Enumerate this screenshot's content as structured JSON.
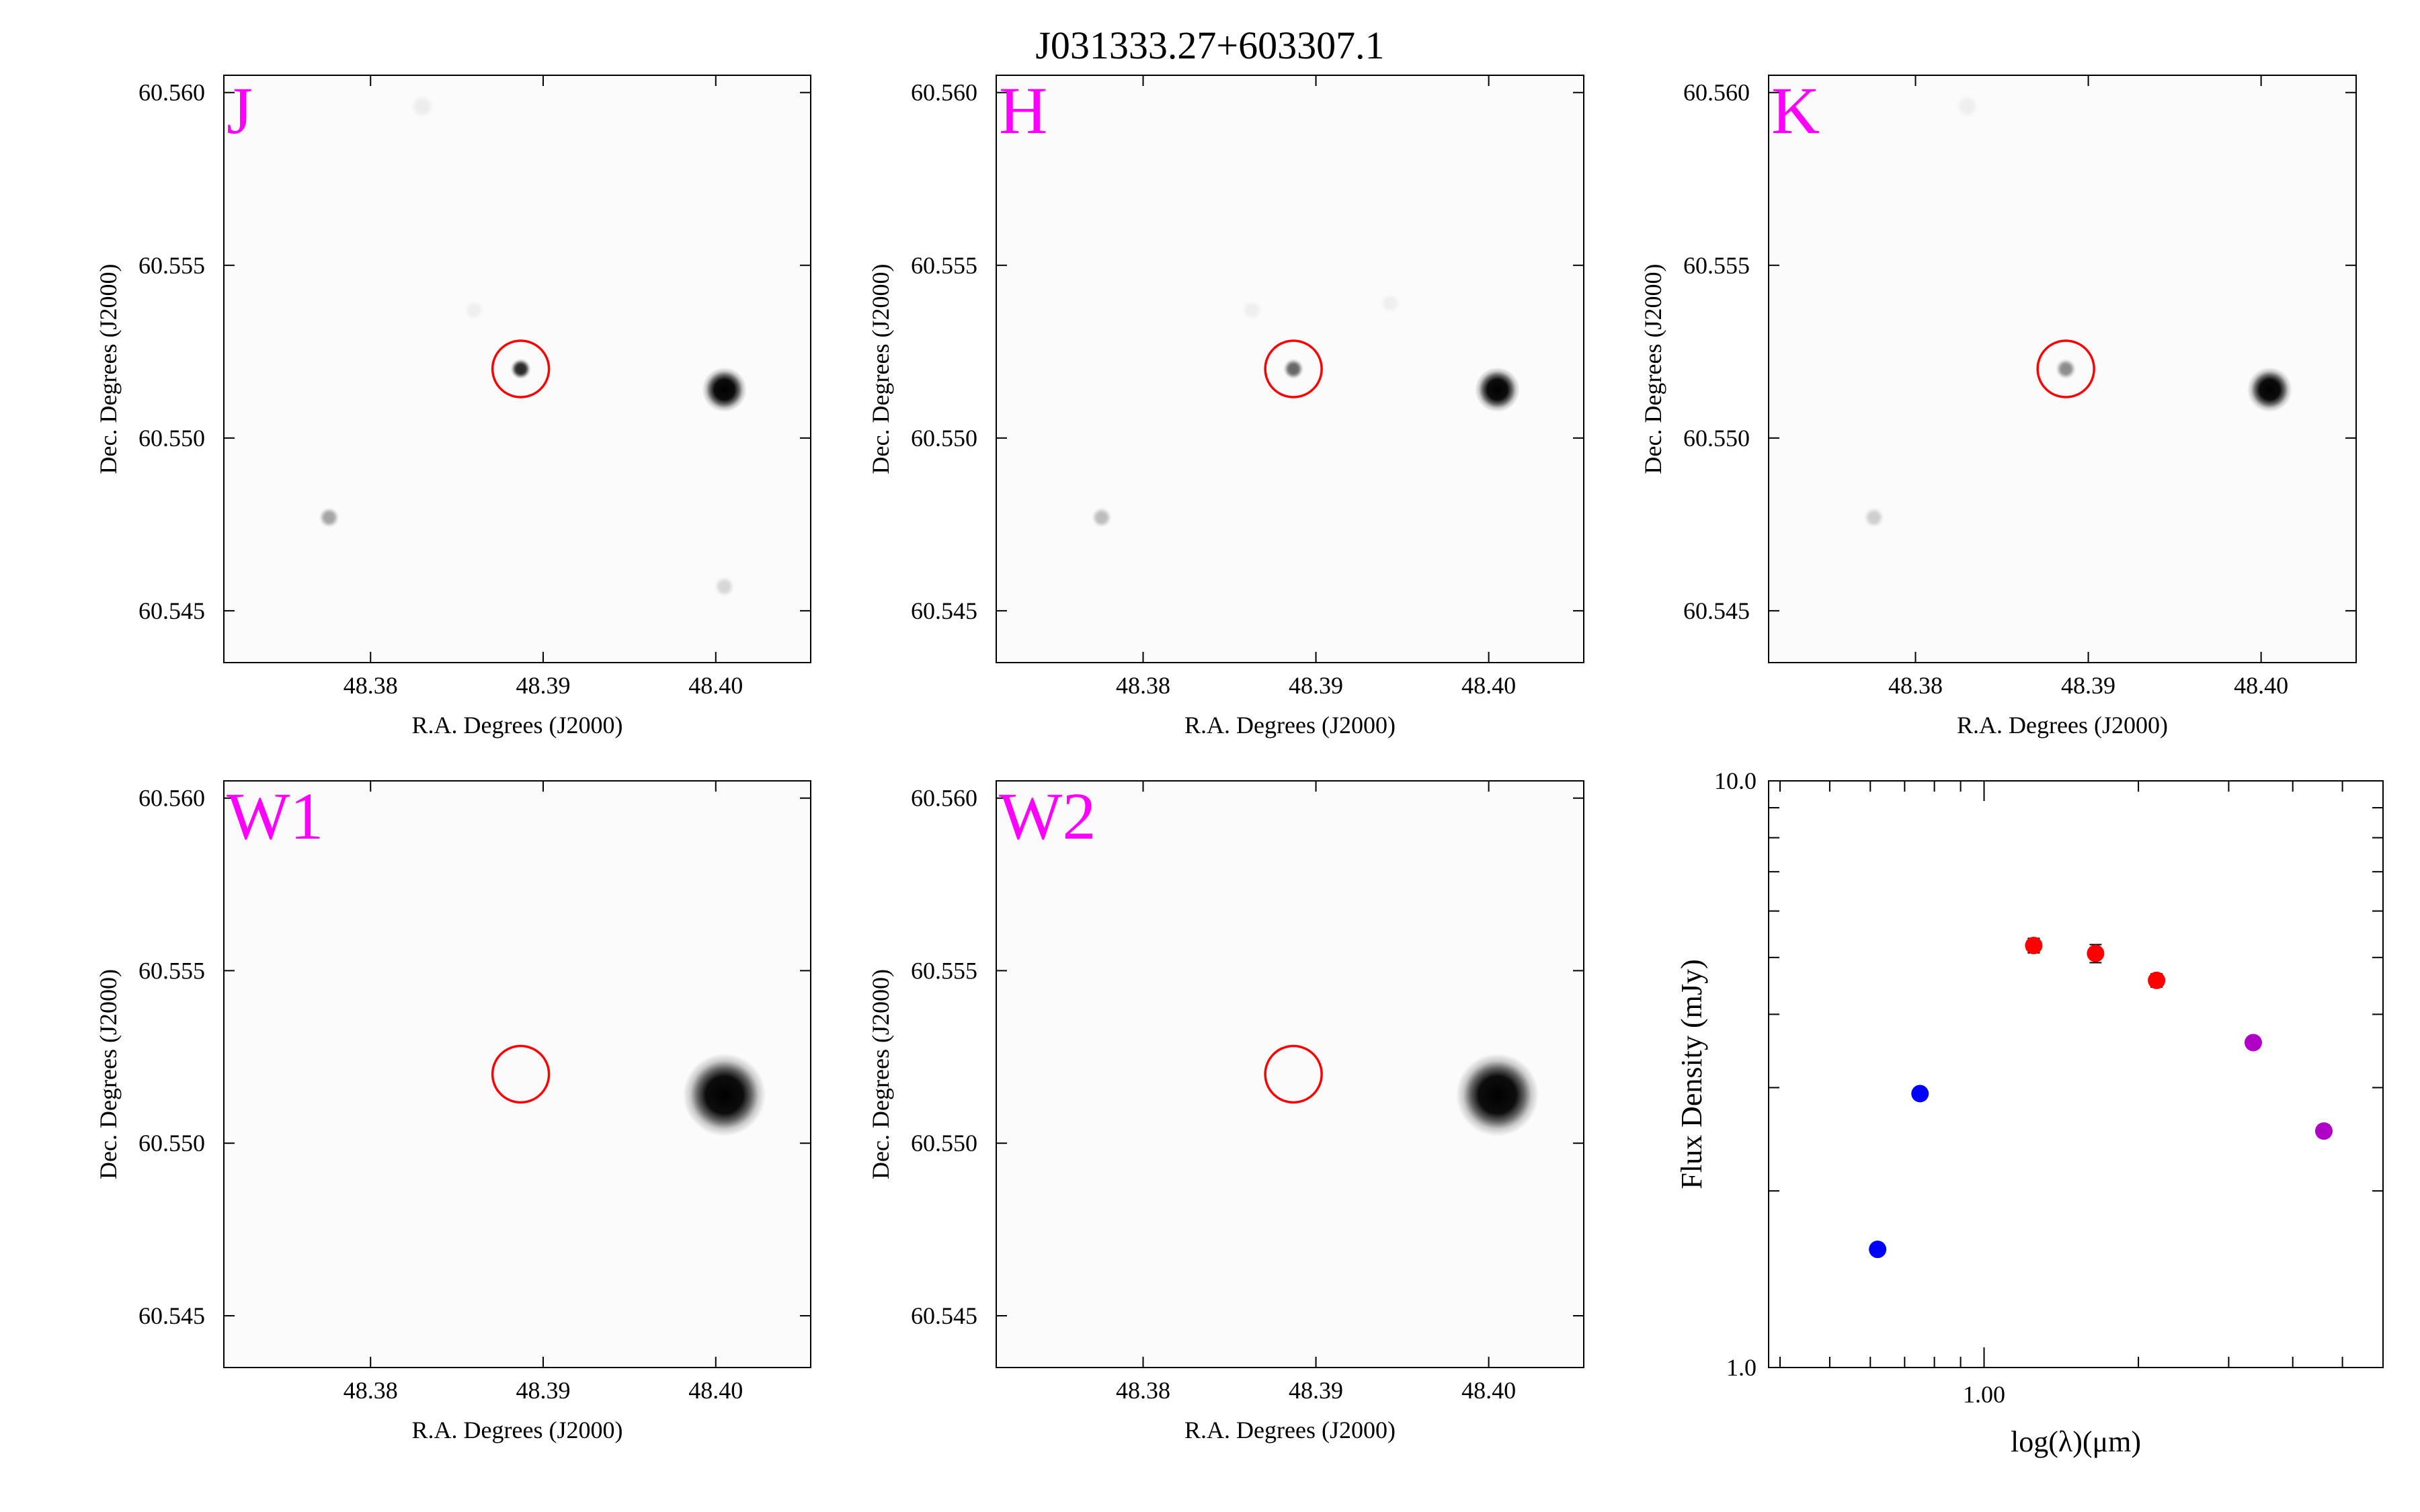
{
  "figure": {
    "title": "J031333.27+603307.1"
  },
  "chart_data": [
    {
      "type": "heatmap",
      "band": "J",
      "xlabel": "R.A. Degrees (J2000)",
      "ylabel": "Dec. Degrees (J2000)",
      "xlim": [
        48.3715,
        48.4055
      ],
      "ylim": [
        60.5435,
        60.5605
      ],
      "xticks": [
        "48.38",
        "48.39",
        "48.40"
      ],
      "yticks": [
        "60.545",
        "60.550",
        "60.555",
        "60.560"
      ],
      "target": {
        "ra": 48.3887,
        "dec": 60.552
      },
      "sources": [
        {
          "ra": 48.3887,
          "dec": 60.552,
          "intensity": 0.85,
          "size": 0.0006
        },
        {
          "ra": 48.4005,
          "dec": 60.5514,
          "intensity": 1.0,
          "size": 0.0013
        },
        {
          "ra": 48.3776,
          "dec": 60.5477,
          "intensity": 0.35,
          "size": 0.0006
        },
        {
          "ra": 48.4005,
          "dec": 60.5457,
          "intensity": 0.15,
          "size": 0.0006
        },
        {
          "ra": 48.383,
          "dec": 60.5596,
          "intensity": 0.06,
          "size": 0.0007
        },
        {
          "ra": 48.386,
          "dec": 60.5537,
          "intensity": 0.05,
          "size": 0.0006
        }
      ]
    },
    {
      "type": "heatmap",
      "band": "H",
      "xlabel": "R.A. Degrees (J2000)",
      "ylabel": "Dec. Degrees (J2000)",
      "xlim": [
        48.3715,
        48.4055
      ],
      "ylim": [
        60.5435,
        60.5605
      ],
      "xticks": [
        "48.38",
        "48.39",
        "48.40"
      ],
      "yticks": [
        "60.545",
        "60.550",
        "60.555",
        "60.560"
      ],
      "target": {
        "ra": 48.3887,
        "dec": 60.552
      },
      "sources": [
        {
          "ra": 48.3887,
          "dec": 60.552,
          "intensity": 0.6,
          "size": 0.0006
        },
        {
          "ra": 48.4005,
          "dec": 60.5514,
          "intensity": 1.0,
          "size": 0.0013
        },
        {
          "ra": 48.3776,
          "dec": 60.5477,
          "intensity": 0.25,
          "size": 0.0006
        },
        {
          "ra": 48.3943,
          "dec": 60.5539,
          "intensity": 0.05,
          "size": 0.0006
        },
        {
          "ra": 48.3863,
          "dec": 60.5537,
          "intensity": 0.05,
          "size": 0.0006
        }
      ]
    },
    {
      "type": "heatmap",
      "band": "K",
      "xlabel": "R.A. Degrees (J2000)",
      "ylabel": "Dec. Degrees (J2000)",
      "xlim": [
        48.3715,
        48.4055
      ],
      "ylim": [
        60.5435,
        60.5605
      ],
      "xticks": [
        "48.38",
        "48.39",
        "48.40"
      ],
      "yticks": [
        "60.545",
        "60.550",
        "60.555",
        "60.560"
      ],
      "target": {
        "ra": 48.3887,
        "dec": 60.552
      },
      "sources": [
        {
          "ra": 48.3887,
          "dec": 60.552,
          "intensity": 0.45,
          "size": 0.0006
        },
        {
          "ra": 48.4005,
          "dec": 60.5514,
          "intensity": 1.0,
          "size": 0.0013
        },
        {
          "ra": 48.3776,
          "dec": 60.5477,
          "intensity": 0.18,
          "size": 0.0006
        },
        {
          "ra": 48.383,
          "dec": 60.5596,
          "intensity": 0.05,
          "size": 0.0007
        }
      ]
    },
    {
      "type": "heatmap",
      "band": "W1",
      "xlabel": "R.A. Degrees (J2000)",
      "ylabel": "Dec. Degrees (J2000)",
      "xlim": [
        48.3715,
        48.4055
      ],
      "ylim": [
        60.5435,
        60.5605
      ],
      "xticks": [
        "48.38",
        "48.39",
        "48.40"
      ],
      "yticks": [
        "60.545",
        "60.550",
        "60.555",
        "60.560"
      ],
      "target": {
        "ra": 48.3887,
        "dec": 60.552
      },
      "sources": [
        {
          "ra": 48.4005,
          "dec": 60.5514,
          "intensity": 1.0,
          "size": 0.0024
        }
      ]
    },
    {
      "type": "heatmap",
      "band": "W2",
      "xlabel": "R.A. Degrees (J2000)",
      "ylabel": "Dec. Degrees (J2000)",
      "xlim": [
        48.3715,
        48.4055
      ],
      "ylim": [
        60.5435,
        60.5605
      ],
      "xticks": [
        "48.38",
        "48.39",
        "48.40"
      ],
      "yticks": [
        "60.545",
        "60.550",
        "60.555",
        "60.560"
      ],
      "target": {
        "ra": 48.3887,
        "dec": 60.552
      },
      "sources": [
        {
          "ra": 48.4005,
          "dec": 60.5514,
          "intensity": 1.0,
          "size": 0.0024
        }
      ]
    },
    {
      "type": "scatter",
      "xlabel": "log(λ)(μm)",
      "ylabel": "Flux Density (mJy)",
      "xscale": "log",
      "yscale": "log",
      "xlim": [
        0.38,
        6.0
      ],
      "ylim": [
        1.0,
        10.0
      ],
      "xtick_labels": [
        "1.00"
      ],
      "ytick_labels": [
        "1.0",
        "10.0"
      ],
      "series": [
        {
          "color": "#0000ff",
          "x": [
            0.62,
            0.75
          ],
          "y": [
            1.59,
            2.93
          ],
          "yerr": [
            0.03,
            0.05
          ]
        },
        {
          "color": "#ff0000",
          "x": [
            1.25,
            1.65,
            2.17
          ],
          "y": [
            5.24,
            5.08,
            4.57
          ],
          "yerr": [
            0.15,
            0.18,
            0.12
          ]
        },
        {
          "color": "#b000c8",
          "x": [
            3.35,
            4.6
          ],
          "y": [
            3.58,
            2.53
          ],
          "yerr": [
            0.07,
            0.06
          ]
        }
      ]
    }
  ]
}
